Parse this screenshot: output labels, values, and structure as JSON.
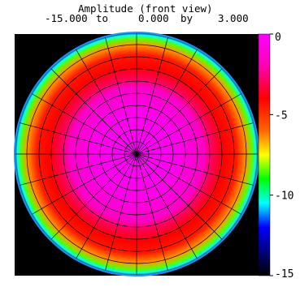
{
  "header": {
    "title": "Amplitude (front view)",
    "range_from": "-15.000",
    "range_to_word": "to",
    "range_to": "0.000",
    "range_by_word": "by",
    "range_step": "3.000"
  },
  "chart_data": {
    "type": "heatmap",
    "title": "Amplitude (front view)",
    "colorbar": {
      "min": -15,
      "max": 0,
      "ticks": [
        0,
        -5,
        -10,
        -15
      ],
      "tick_labels": [
        "0",
        "-5",
        "-10",
        "-15"
      ],
      "colormap": [
        {
          "value": 0,
          "color": "#ff00ff"
        },
        {
          "value": -2,
          "color": "#ff00b4"
        },
        {
          "value": -4,
          "color": "#ff0000"
        },
        {
          "value": -6,
          "color": "#ff6600"
        },
        {
          "value": -7.5,
          "color": "#ffff00"
        },
        {
          "value": -9,
          "color": "#00ff00"
        },
        {
          "value": -10.5,
          "color": "#00ffff"
        },
        {
          "value": -12,
          "color": "#0000ff"
        },
        {
          "value": -13.5,
          "color": "#000080"
        },
        {
          "value": -15,
          "color": "#000000"
        }
      ]
    },
    "radial_profile": [
      {
        "r": 0.0,
        "value": 0
      },
      {
        "r": 0.35,
        "value": -0.5
      },
      {
        "r": 0.55,
        "value": -1.5
      },
      {
        "r": 0.62,
        "value": -3.0
      },
      {
        "r": 0.72,
        "value": -4.0
      },
      {
        "r": 0.82,
        "value": -4.5
      },
      {
        "r": 0.9,
        "value": -6.5
      },
      {
        "r": 0.95,
        "value": -8.5
      },
      {
        "r": 0.98,
        "value": -10.5
      },
      {
        "r": 1.0,
        "value": -15
      }
    ],
    "grid": true
  }
}
